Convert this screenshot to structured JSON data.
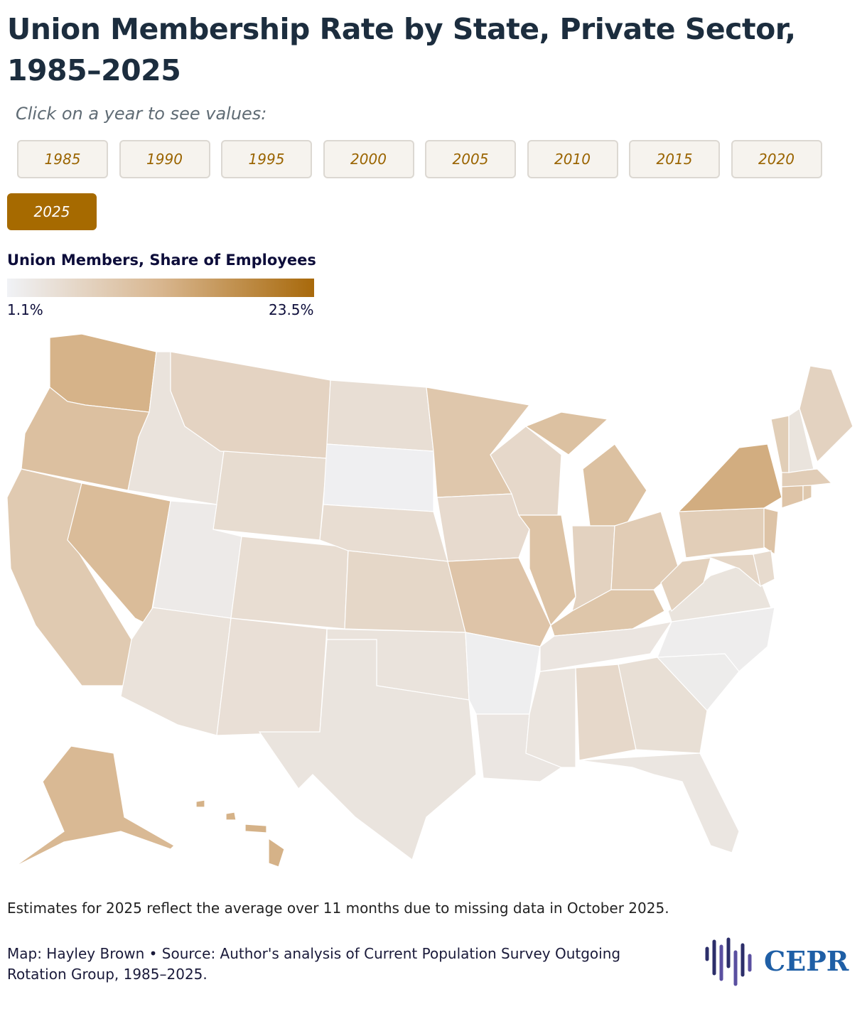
{
  "header": {
    "title": "Union Membership Rate by State, Private Sector, 1985–2025",
    "prompt": "Click on a year to see values:"
  },
  "year_buttons": {
    "labels": [
      "1985",
      "1990",
      "1995",
      "2000",
      "2005",
      "2010",
      "2015",
      "2020",
      "2025"
    ],
    "selected": 8
  },
  "chart_data": {
    "type": "choropleth",
    "legend_title": "Union Members, Share of Employees",
    "lim": [
      1.1,
      23.5
    ],
    "ticks": [
      {
        "value": 1.1,
        "label": "1.1%"
      },
      {
        "value": 23.5,
        "label": "23.5%"
      }
    ],
    "colors": [
      "#f0f2f6",
      "#d8b68f",
      "#a8690b"
    ],
    "values": [
      12.8,
      10.5,
      8.6,
      11.2,
      3.9,
      6.8,
      5.2,
      2.6,
      4.1,
      5.0,
      4.6,
      4.8,
      1.6,
      5.0,
      6.1,
      3.9,
      3.7,
      9.2,
      5.5,
      9.6,
      1.9,
      3.3,
      5.9,
      9.9,
      10.3,
      7.0,
      8.2,
      9.4,
      3.5,
      3.6,
      5.9,
      4.7,
      3.4,
      2.3,
      2.1,
      3.8,
      7.3,
      7.8,
      13.6,
      9.8,
      6.3,
      5.4,
      9.7,
      9.0,
      8.0,
      7.9,
      3.8,
      7.0,
      11.8,
      12.9
    ]
  },
  "footer": {
    "note": "Estimates for 2025 reflect the average over 11 months due to missing data in October 2025.",
    "credit": "Map: Hayley Brown • Source: Author's analysis of Current Population Survey Outgoing Rotation Group, 1985–2025.",
    "logo": "CEPR"
  }
}
